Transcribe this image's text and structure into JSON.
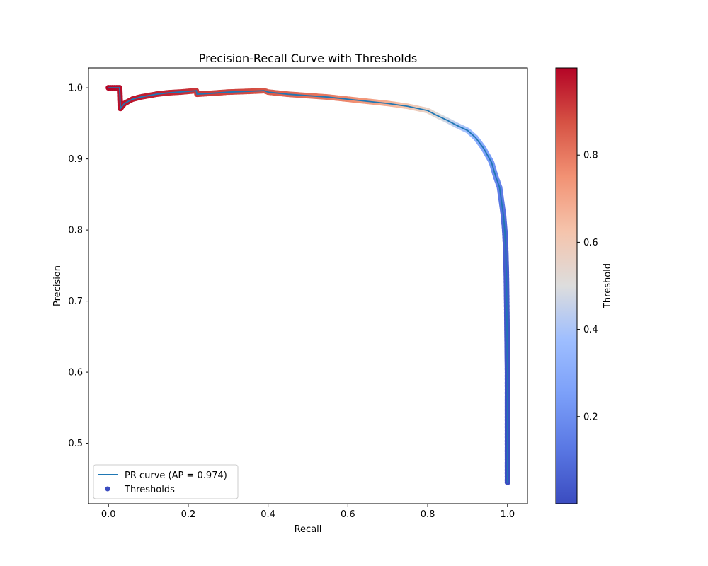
{
  "chart_data": {
    "type": "scatter",
    "title": "Precision-Recall Curve with Thresholds",
    "xlabel": "Recall",
    "ylabel": "Precision",
    "xlim": [
      -0.05,
      1.05
    ],
    "ylim": [
      0.415,
      1.028
    ],
    "xticks": [
      0.0,
      0.2,
      0.4,
      0.6,
      0.8,
      1.0
    ],
    "xtick_labels": [
      "0.0",
      "0.2",
      "0.4",
      "0.6",
      "0.8",
      "1.0"
    ],
    "yticks": [
      0.5,
      0.6,
      0.7,
      0.8,
      0.9,
      1.0
    ],
    "ytick_labels": [
      "0.5",
      "0.6",
      "0.7",
      "0.8",
      "0.9",
      "1.0"
    ],
    "grid": false,
    "legend": {
      "placement": "lower-left",
      "entries": [
        {
          "label": "PR curve (AP = 0.974)",
          "type": "line",
          "color": "#1f77b4"
        },
        {
          "label": "Thresholds",
          "type": "marker",
          "color": "#3b4cc0"
        }
      ]
    },
    "series": [
      {
        "name": "PR curve (AP = 0.974)",
        "kind": "line",
        "color": "#1f77b4",
        "points": [
          [
            0.0,
            1.0
          ],
          [
            0.028,
            1.0
          ],
          [
            0.03,
            0.971
          ],
          [
            0.04,
            0.978
          ],
          [
            0.06,
            0.984
          ],
          [
            0.08,
            0.987
          ],
          [
            0.1,
            0.989
          ],
          [
            0.12,
            0.991
          ],
          [
            0.15,
            0.993
          ],
          [
            0.2,
            0.995
          ],
          [
            0.22,
            0.996
          ],
          [
            0.222,
            0.991
          ],
          [
            0.25,
            0.992
          ],
          [
            0.3,
            0.994
          ],
          [
            0.35,
            0.995
          ],
          [
            0.39,
            0.996
          ],
          [
            0.4,
            0.994
          ],
          [
            0.45,
            0.991
          ],
          [
            0.5,
            0.989
          ],
          [
            0.55,
            0.987
          ],
          [
            0.6,
            0.984
          ],
          [
            0.65,
            0.981
          ],
          [
            0.7,
            0.978
          ],
          [
            0.75,
            0.974
          ],
          [
            0.8,
            0.968
          ],
          [
            0.82,
            0.962
          ],
          [
            0.85,
            0.954
          ],
          [
            0.87,
            0.948
          ],
          [
            0.9,
            0.94
          ],
          [
            0.92,
            0.93
          ],
          [
            0.94,
            0.915
          ],
          [
            0.96,
            0.895
          ],
          [
            0.97,
            0.876
          ],
          [
            0.98,
            0.86
          ],
          [
            0.985,
            0.84
          ],
          [
            0.99,
            0.82
          ],
          [
            0.993,
            0.8
          ],
          [
            0.995,
            0.78
          ],
          [
            0.997,
            0.74
          ],
          [
            0.998,
            0.7
          ],
          [
            0.999,
            0.65
          ],
          [
            1.0,
            0.6
          ],
          [
            1.0,
            0.55
          ],
          [
            1.0,
            0.5
          ],
          [
            1.0,
            0.445
          ]
        ]
      },
      {
        "name": "Thresholds",
        "kind": "scatter",
        "colormap": "coolwarm",
        "points": [
          [
            0.0,
            1.0,
            1.0
          ],
          [
            0.01,
            1.0,
            0.995
          ],
          [
            0.02,
            1.0,
            0.99
          ],
          [
            0.028,
            1.0,
            0.985
          ],
          [
            0.03,
            0.971,
            0.98
          ],
          [
            0.04,
            0.978,
            0.975
          ],
          [
            0.06,
            0.984,
            0.97
          ],
          [
            0.08,
            0.987,
            0.965
          ],
          [
            0.1,
            0.989,
            0.96
          ],
          [
            0.12,
            0.991,
            0.955
          ],
          [
            0.15,
            0.993,
            0.95
          ],
          [
            0.18,
            0.994,
            0.94
          ],
          [
            0.2,
            0.995,
            0.93
          ],
          [
            0.22,
            0.996,
            0.92
          ],
          [
            0.222,
            0.991,
            0.915
          ],
          [
            0.25,
            0.992,
            0.91
          ],
          [
            0.3,
            0.994,
            0.9
          ],
          [
            0.35,
            0.995,
            0.89
          ],
          [
            0.39,
            0.996,
            0.87
          ],
          [
            0.4,
            0.994,
            0.86
          ],
          [
            0.45,
            0.991,
            0.84
          ],
          [
            0.5,
            0.989,
            0.82
          ],
          [
            0.55,
            0.987,
            0.8
          ],
          [
            0.6,
            0.984,
            0.77
          ],
          [
            0.65,
            0.981,
            0.73
          ],
          [
            0.7,
            0.978,
            0.68
          ],
          [
            0.75,
            0.974,
            0.62
          ],
          [
            0.8,
            0.968,
            0.56
          ],
          [
            0.82,
            0.962,
            0.52
          ],
          [
            0.85,
            0.954,
            0.47
          ],
          [
            0.87,
            0.948,
            0.43
          ],
          [
            0.9,
            0.94,
            0.38
          ],
          [
            0.92,
            0.93,
            0.33
          ],
          [
            0.94,
            0.915,
            0.28
          ],
          [
            0.96,
            0.895,
            0.23
          ],
          [
            0.97,
            0.876,
            0.19
          ],
          [
            0.98,
            0.86,
            0.16
          ],
          [
            0.985,
            0.84,
            0.13
          ],
          [
            0.99,
            0.82,
            0.1
          ],
          [
            0.993,
            0.8,
            0.08
          ],
          [
            0.995,
            0.78,
            0.06
          ],
          [
            0.997,
            0.74,
            0.045
          ],
          [
            0.998,
            0.7,
            0.035
          ],
          [
            0.999,
            0.65,
            0.025
          ],
          [
            1.0,
            0.6,
            0.018
          ],
          [
            1.0,
            0.55,
            0.012
          ],
          [
            1.0,
            0.5,
            0.007
          ],
          [
            1.0,
            0.445,
            0.003
          ]
        ]
      }
    ],
    "colorbar": {
      "label": "Threshold",
      "range": [
        0.0,
        1.0
      ],
      "ticks": [
        0.2,
        0.4,
        0.6,
        0.8
      ],
      "tick_labels": [
        "0.2",
        "0.4",
        "0.6",
        "0.8"
      ],
      "colormap": "coolwarm",
      "low_color": "#3b4cc0",
      "mid_color": "#dddddd",
      "high_color": "#b40426"
    }
  }
}
